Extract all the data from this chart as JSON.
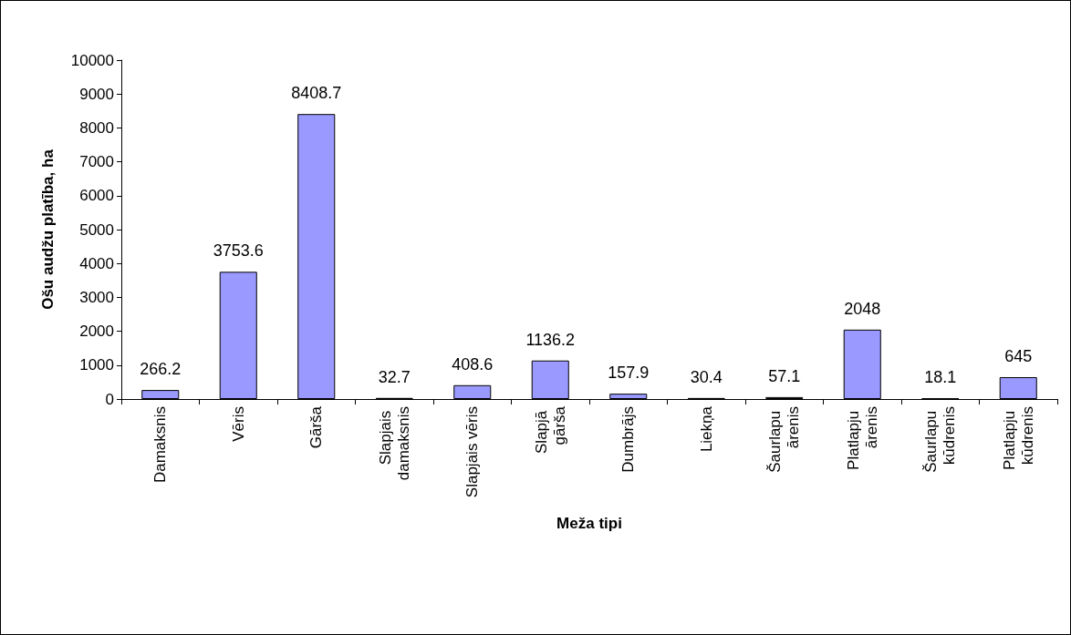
{
  "chart_data": {
    "type": "bar",
    "xlabel": "Meža tipi",
    "ylabel": "Ošu audžu platība, ha",
    "categories": [
      "Damaksnis",
      "Vēris",
      "Gārša",
      "Slapjais damaksnis",
      "Slapjais vēris",
      "Slapjā gārša",
      "Dumbrājs",
      "Liekņa",
      "Šaurlapu ārenis",
      "Platlapju ārenis",
      "Šaurlapu kūdrenis",
      "Platlapju kūdrenis"
    ],
    "values": [
      266.2,
      3753.6,
      8408.7,
      32.7,
      408.6,
      1136.2,
      157.9,
      30.4,
      57.1,
      2048,
      18.1,
      645
    ],
    "color": "#9999ff",
    "ylim": [
      0,
      10000
    ],
    "yticks": [
      0,
      1000,
      2000,
      3000,
      4000,
      5000,
      6000,
      7000,
      8000,
      9000,
      10000
    ],
    "data_labels": true
  }
}
